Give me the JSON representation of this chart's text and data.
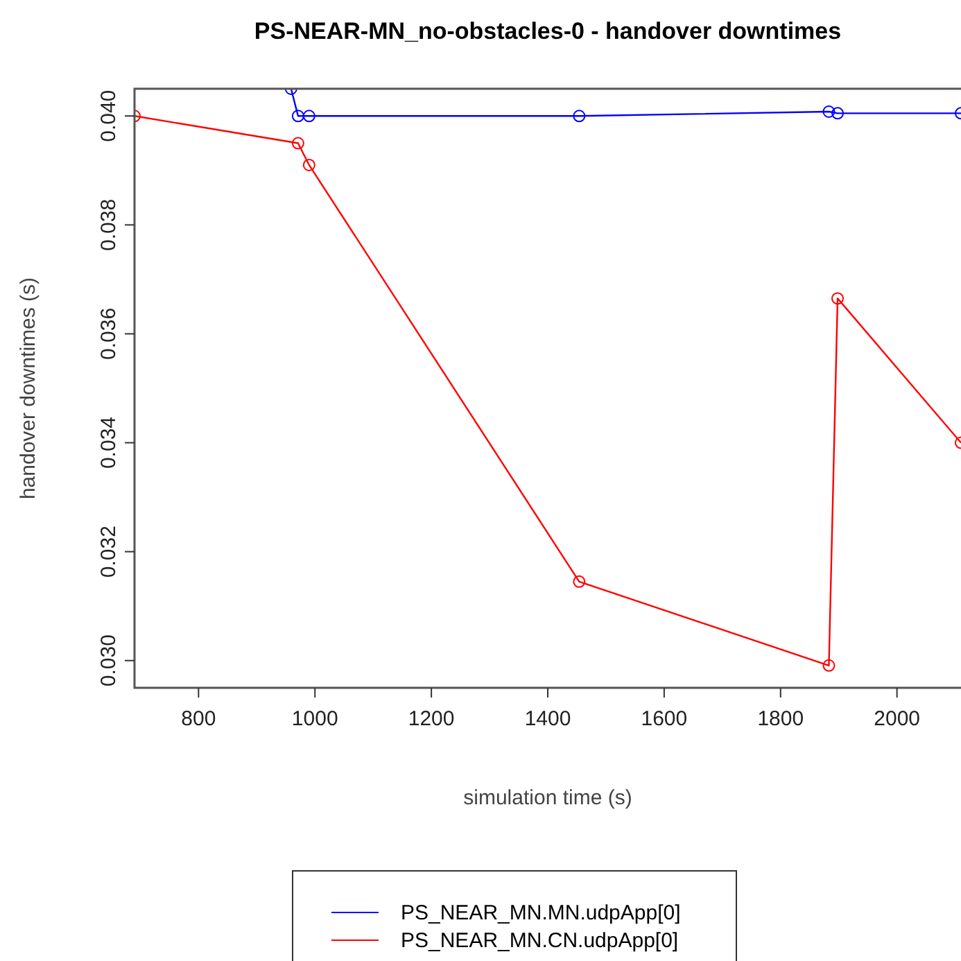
{
  "chart_data": {
    "type": "line",
    "title": "PS-NEAR-MN_no-obstacles-0 - handover downtimes",
    "xlabel": "simulation time (s)",
    "ylabel": "handover downtimes (s)",
    "xlim": [
      690,
      2110
    ],
    "xticks": [
      800,
      1000,
      1200,
      1400,
      1600,
      1800,
      2000
    ],
    "ylim": [
      0.0295,
      0.0405
    ],
    "yticks": [
      {
        "value": 0.03,
        "label": "0.030"
      },
      {
        "value": 0.032,
        "label": "0.032"
      },
      {
        "value": 0.034,
        "label": "0.034"
      },
      {
        "value": 0.036,
        "label": "0.036"
      },
      {
        "value": 0.038,
        "label": "0.038"
      },
      {
        "value": 0.04,
        "label": "0.040"
      }
    ],
    "grid": false,
    "legend": "bottom",
    "marker": "circle",
    "line_style": "solid",
    "series": [
      {
        "name": "PS_NEAR_MN.MN.udpApp[0]",
        "color": "#0000ff",
        "x": [
          959,
          971,
          990,
          1454,
          1883,
          1898,
          2110
        ],
        "values": [
          0.0405,
          0.04,
          0.04,
          0.04,
          0.04008,
          0.04005,
          0.04005
        ]
      },
      {
        "name": "PS_NEAR_MN.CN.udpApp[0]",
        "color": "#ff0000",
        "x": [
          690,
          971,
          990,
          1454,
          1883,
          1898,
          2110
        ],
        "values": [
          0.04,
          0.0395,
          0.0391,
          0.03145,
          0.02991,
          0.03665,
          0.034
        ]
      }
    ]
  }
}
